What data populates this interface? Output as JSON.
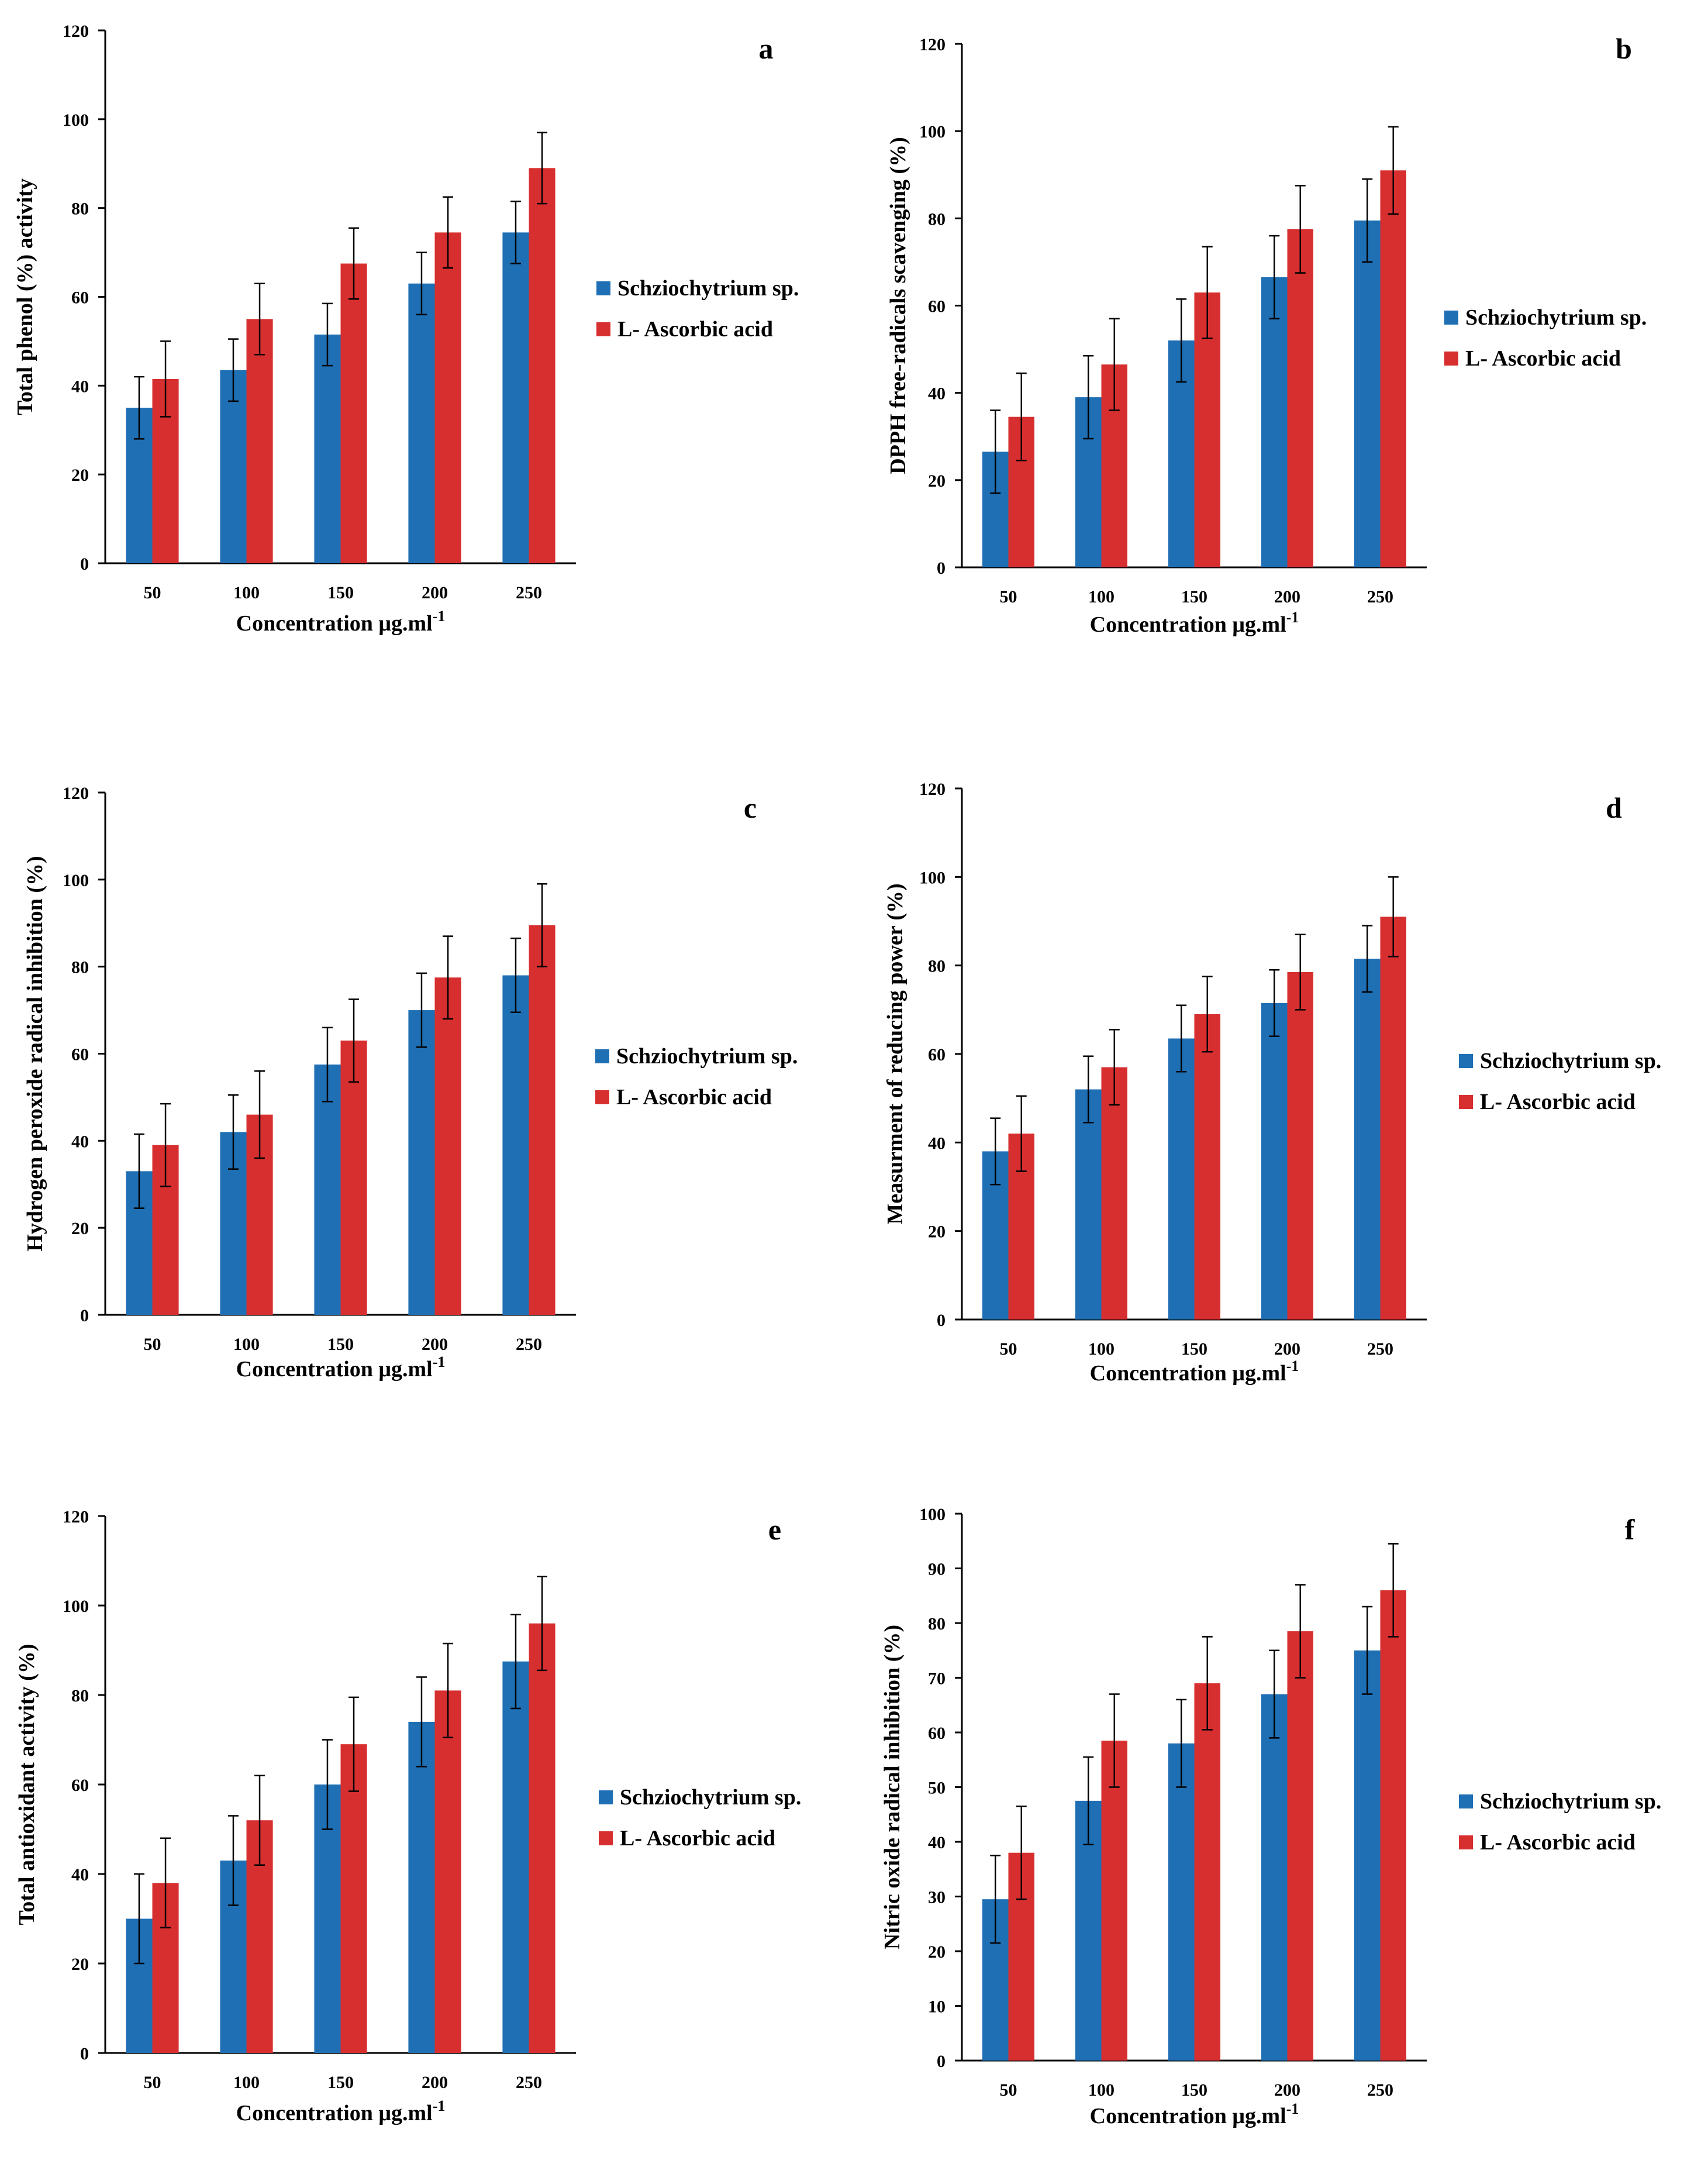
{
  "colors": {
    "schizo": "#1f6fb4",
    "ascorbic": "#d72f2f",
    "axis": "#000000"
  },
  "legend": [
    "Schziochytrium sp.",
    "L- Ascorbic acid"
  ],
  "chart_data": [
    {
      "type": "bar",
      "panel": "a",
      "categories": [
        "50",
        "100",
        "150",
        "200",
        "250"
      ],
      "xlabel": "Concentration μg.ml",
      "xlabel_sup": "-1",
      "ylabel": "Total phenol (%) activity",
      "ylim": [
        0,
        120
      ],
      "yticks": [
        0,
        20,
        40,
        60,
        80,
        100,
        120
      ],
      "series": [
        {
          "name": "Schziochytrium sp.",
          "values": [
            35,
            43.5,
            51.5,
            63,
            74.5
          ],
          "errors": [
            7,
            7,
            7,
            7,
            7
          ]
        },
        {
          "name": "L- Ascorbic acid",
          "values": [
            41.5,
            55,
            67.5,
            74.5,
            89
          ],
          "errors": [
            8.5,
            8,
            8,
            8,
            8
          ]
        }
      ]
    },
    {
      "type": "bar",
      "panel": "b",
      "categories": [
        "50",
        "100",
        "150",
        "200",
        "250"
      ],
      "xlabel": "Concentration μg.ml",
      "xlabel_sup": "-1",
      "ylabel": "DPPH free-radicals  scavenging (%)",
      "ylim": [
        0,
        120
      ],
      "yticks": [
        0,
        20,
        40,
        60,
        80,
        100,
        120
      ],
      "series": [
        {
          "name": "Schziochytrium sp.",
          "values": [
            26.5,
            39,
            52,
            66.5,
            79.5
          ],
          "errors": [
            9.5,
            9.5,
            9.5,
            9.5,
            9.5
          ]
        },
        {
          "name": "L- Ascorbic acid",
          "values": [
            34.5,
            46.5,
            63,
            77.5,
            91
          ],
          "errors": [
            10,
            10.5,
            10.5,
            10,
            10
          ]
        }
      ]
    },
    {
      "type": "bar",
      "panel": "c",
      "categories": [
        "50",
        "100",
        "150",
        "200",
        "250"
      ],
      "xlabel": "Concentration μg.ml",
      "xlabel_sup": "-1",
      "ylabel": "Hydrogen peroxide radical inhibition (%)",
      "ylim": [
        0,
        120
      ],
      "yticks": [
        0,
        20,
        40,
        60,
        80,
        100,
        120
      ],
      "series": [
        {
          "name": "Schziochytrium sp.",
          "values": [
            33,
            42,
            57.5,
            70,
            78
          ],
          "errors": [
            8.5,
            8.5,
            8.5,
            8.5,
            8.5
          ]
        },
        {
          "name": "L- Ascorbic acid",
          "values": [
            39,
            46,
            63,
            77.5,
            89.5
          ],
          "errors": [
            9.5,
            10,
            9.5,
            9.5,
            9.5
          ]
        }
      ]
    },
    {
      "type": "bar",
      "panel": "d",
      "categories": [
        "50",
        "100",
        "150",
        "200",
        "250"
      ],
      "xlabel": "Concentration μg.ml",
      "xlabel_sup": "-1",
      "ylabel": "Measurment of reducing power (%)",
      "ylim": [
        0,
        120
      ],
      "yticks": [
        0,
        20,
        40,
        60,
        80,
        100,
        120
      ],
      "series": [
        {
          "name": "Schziochytrium sp.",
          "values": [
            38,
            52,
            63.5,
            71.5,
            81.5
          ],
          "errors": [
            7.5,
            7.5,
            7.5,
            7.5,
            7.5
          ]
        },
        {
          "name": "L- Ascorbic acid",
          "values": [
            42,
            57,
            69,
            78.5,
            91
          ],
          "errors": [
            8.5,
            8.5,
            8.5,
            8.5,
            9
          ]
        }
      ]
    },
    {
      "type": "bar",
      "panel": "e",
      "categories": [
        "50",
        "100",
        "150",
        "200",
        "250"
      ],
      "xlabel": "Concentration μg.ml",
      "xlabel_sup": "-1",
      "ylabel": "Total antioxidant activity  (%)",
      "ylim": [
        0,
        120
      ],
      "yticks": [
        0,
        20,
        40,
        60,
        80,
        100,
        120
      ],
      "series": [
        {
          "name": "Schziochytrium sp.",
          "values": [
            30,
            43,
            60,
            74,
            87.5
          ],
          "errors": [
            10,
            10,
            10,
            10,
            10.5
          ]
        },
        {
          "name": "L- Ascorbic acid",
          "values": [
            38,
            52,
            69,
            81,
            96
          ],
          "errors": [
            10,
            10,
            10.5,
            10.5,
            10.5
          ]
        }
      ]
    },
    {
      "type": "bar",
      "panel": "f",
      "categories": [
        "50",
        "100",
        "150",
        "200",
        "250"
      ],
      "xlabel": "Concentration μg.ml",
      "xlabel_sup": "-1",
      "ylabel": "Nitric oxide radical inhibition  (%)",
      "ylim": [
        0,
        100
      ],
      "yticks": [
        0,
        10,
        20,
        30,
        40,
        50,
        60,
        70,
        80,
        90,
        100
      ],
      "series": [
        {
          "name": "Schziochytrium sp.",
          "values": [
            29.5,
            47.5,
            58,
            67,
            75
          ],
          "errors": [
            8,
            8,
            8,
            8,
            8
          ]
        },
        {
          "name": "L- Ascorbic acid",
          "values": [
            38,
            58.5,
            69,
            78.5,
            86
          ],
          "errors": [
            8.5,
            8.5,
            8.5,
            8.5,
            8.5
          ]
        }
      ]
    }
  ]
}
